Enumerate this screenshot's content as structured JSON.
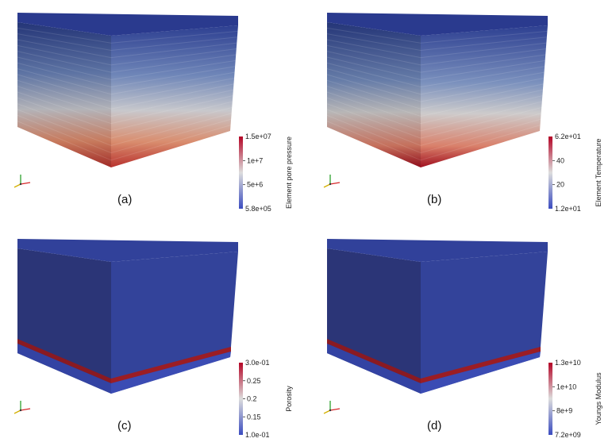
{
  "panels": [
    {
      "label": "(a)",
      "colorbar": {
        "title": "Element pore pressure",
        "max_label": "1.5e+07",
        "min_label": "5.8e+05",
        "ticks": [
          "1e+7",
          "5e+6"
        ]
      },
      "field": "gradient"
    },
    {
      "label": "(b)",
      "colorbar": {
        "title": "Element Temperature",
        "max_label": "6.2e+01",
        "min_label": "1.2e+01",
        "ticks": [
          "40",
          "20"
        ]
      },
      "field": "gradient"
    },
    {
      "label": "(c)",
      "colorbar": {
        "title": "Porosity",
        "max_label": "3.0e-01",
        "min_label": "1.0e-01",
        "ticks": [
          "0.25",
          "0.2",
          "0.15"
        ]
      },
      "field": "layer"
    },
    {
      "label": "(d)",
      "colorbar": {
        "title": "Youngs Modulus",
        "max_label": "1.3e+10",
        "min_label": "7.2e+09",
        "ticks": [
          "1e+10",
          "8e+9"
        ]
      },
      "field": "layer"
    }
  ],
  "colors": {
    "cool_low": "#3b4cc0",
    "mid": "#dddddd",
    "warm_high": "#b40426",
    "block_blue": "#2c3a87",
    "layer_red": "#8b1a1a"
  }
}
